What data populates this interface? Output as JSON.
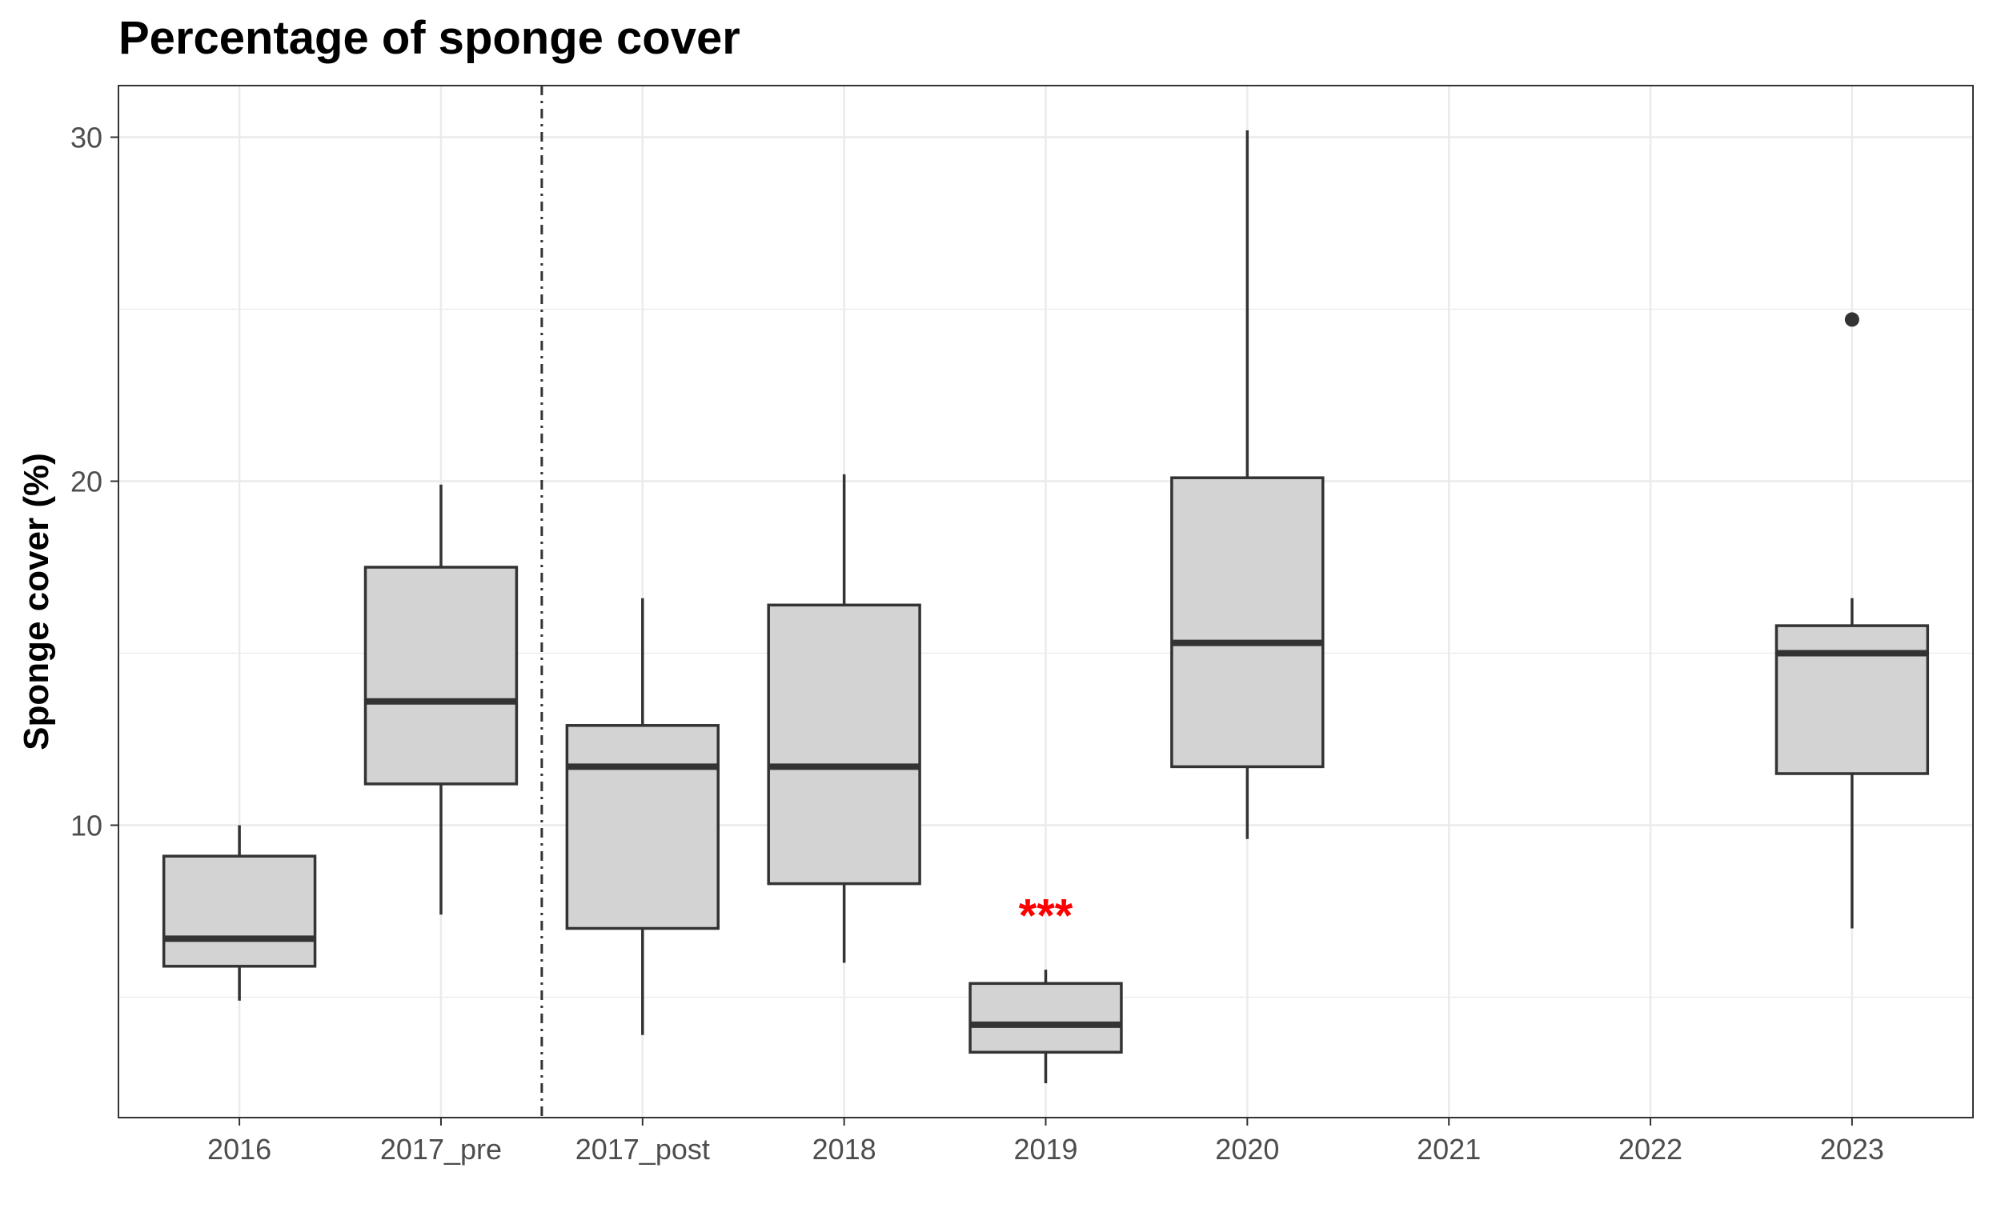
{
  "chart_data": {
    "type": "box",
    "title": "Percentage of sponge cover",
    "xlabel": "",
    "ylabel": "Sponge cover (%)",
    "ylim": [
      1.5,
      31.5
    ],
    "yticks": [
      10,
      20,
      30
    ],
    "grid": true,
    "legend": "none",
    "categories": [
      "2016",
      "2017_pre",
      "2017_post",
      "2018",
      "2019",
      "2020",
      "2021",
      "2022",
      "2023"
    ],
    "boxes": [
      {
        "category": "2016",
        "whisker_low": 4.9,
        "q1": 5.9,
        "median": 6.7,
        "q3": 9.1,
        "whisker_high": 10.0,
        "outliers": []
      },
      {
        "category": "2017_pre",
        "whisker_low": 7.4,
        "q1": 11.2,
        "median": 13.6,
        "q3": 17.5,
        "whisker_high": 19.9,
        "outliers": []
      },
      {
        "category": "2017_post",
        "whisker_low": 3.9,
        "q1": 7.0,
        "median": 11.7,
        "q3": 12.9,
        "whisker_high": 16.6,
        "outliers": []
      },
      {
        "category": "2018",
        "whisker_low": 6.0,
        "q1": 8.3,
        "median": 11.7,
        "q3": 16.4,
        "whisker_high": 20.2,
        "outliers": []
      },
      {
        "category": "2019",
        "whisker_low": 2.5,
        "q1": 3.4,
        "median": 4.2,
        "q3": 5.4,
        "whisker_high": 5.8,
        "outliers": [],
        "annotation": "***"
      },
      {
        "category": "2020",
        "whisker_low": 9.6,
        "q1": 11.7,
        "median": 15.3,
        "q3": 20.1,
        "whisker_high": 30.2,
        "outliers": []
      },
      {
        "category": "2023",
        "whisker_low": 7.0,
        "q1": 11.5,
        "median": 15.0,
        "q3": 15.8,
        "whisker_high": 16.6,
        "outliers": [
          24.7
        ]
      }
    ],
    "reference_line": {
      "style": "dot-dash",
      "between": [
        "2017_pre",
        "2017_post"
      ]
    },
    "colors": {
      "box_fill": "#d3d3d3",
      "box_stroke": "#333333",
      "grid": "#ebebeb",
      "annotation": "#ff0000",
      "axis_text": "#4d4d4d"
    }
  }
}
